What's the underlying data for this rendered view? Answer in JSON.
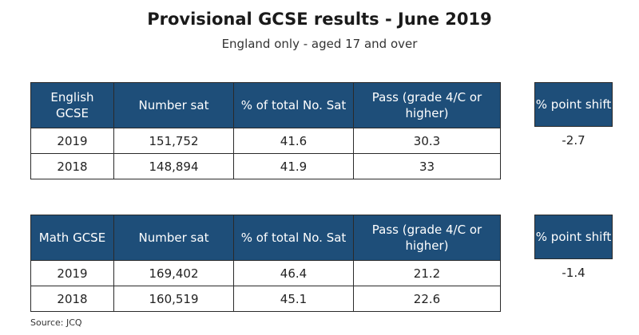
{
  "title": "Provisional GCSE results - June 2019",
  "subtitle": "England only - aged 17 and over",
  "colors": {
    "header_bg": "#1e4e79",
    "header_text": "#ffffff"
  },
  "english": {
    "headers": [
      "English GCSE",
      "Number sat",
      "% of total No. Sat",
      "Pass (grade 4/C or higher)"
    ],
    "rows": [
      [
        "2019",
        "151,752",
        "41.6",
        "30.3"
      ],
      [
        "2018",
        "148,894",
        "41.9",
        "33"
      ]
    ],
    "shift_label": "% point shift",
    "shift_value": "-2.7"
  },
  "math": {
    "headers": [
      "Math GCSE",
      "Number sat",
      "% of total No. Sat",
      "Pass (grade 4/C or higher)"
    ],
    "rows": [
      [
        "2019",
        "169,402",
        "46.4",
        "21.2"
      ],
      [
        "2018",
        "160,519",
        "45.1",
        "22.6"
      ]
    ],
    "shift_label": "% point shift",
    "shift_value": "-1.4"
  },
  "source": "Source: JCQ"
}
